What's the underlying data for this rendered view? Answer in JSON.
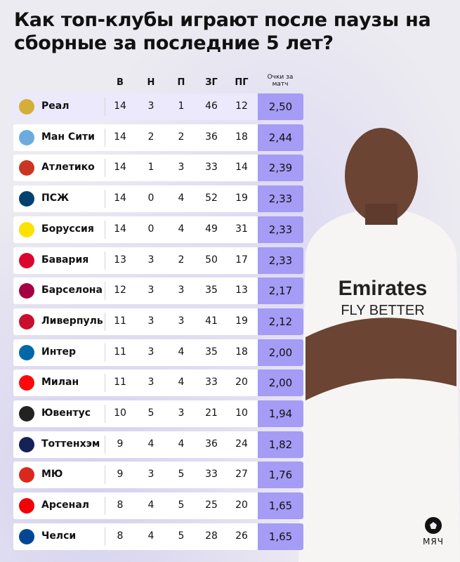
{
  "title": "Как топ-клубы играют после паузы на сборные за последние 5 лет?",
  "brand": "МЯЧ",
  "colors": {
    "score_cell": "#a49cf5",
    "highlight_row": "#ebe9fb"
  },
  "chart_data": {
    "type": "table",
    "columns": [
      "В",
      "Н",
      "П",
      "ЗГ",
      "ПГ",
      "Очки за матч"
    ],
    "rows": [
      {
        "team": "Реал",
        "logo": "real-madrid-crest",
        "v": 14,
        "n": 3,
        "p": 1,
        "zg": 46,
        "pg": 12,
        "ppm": "2,50",
        "color": "#d4af37"
      },
      {
        "team": "Ман Сити",
        "logo": "man-city-crest",
        "v": 14,
        "n": 2,
        "p": 2,
        "zg": 36,
        "pg": 18,
        "ppm": "2,44",
        "color": "#6cabdd"
      },
      {
        "team": "Атлетико",
        "logo": "atletico-crest",
        "v": 14,
        "n": 1,
        "p": 3,
        "zg": 33,
        "pg": 14,
        "ppm": "2,39",
        "color": "#cb3524"
      },
      {
        "team": "ПСЖ",
        "logo": "psg-crest",
        "v": 14,
        "n": 0,
        "p": 4,
        "zg": 52,
        "pg": 19,
        "ppm": "2,33",
        "color": "#004170"
      },
      {
        "team": "Боруссия",
        "logo": "borussia-crest",
        "v": 14,
        "n": 0,
        "p": 4,
        "zg": 49,
        "pg": 31,
        "ppm": "2,33",
        "color": "#fde100"
      },
      {
        "team": "Бавария",
        "logo": "bayern-crest",
        "v": 13,
        "n": 3,
        "p": 2,
        "zg": 50,
        "pg": 17,
        "ppm": "2,33",
        "color": "#dc052d"
      },
      {
        "team": "Барселона",
        "logo": "barcelona-crest",
        "v": 12,
        "n": 3,
        "p": 3,
        "zg": 35,
        "pg": 13,
        "ppm": "2,17",
        "color": "#a50044"
      },
      {
        "team": "Ливерпуль",
        "logo": "liverpool-crest",
        "v": 11,
        "n": 3,
        "p": 3,
        "zg": 41,
        "pg": 19,
        "ppm": "2,12",
        "color": "#c8102e"
      },
      {
        "team": "Интер",
        "logo": "inter-crest",
        "v": 11,
        "n": 3,
        "p": 4,
        "zg": 35,
        "pg": 18,
        "ppm": "2,00",
        "color": "#0068a8"
      },
      {
        "team": "Милан",
        "logo": "milan-crest",
        "v": 11,
        "n": 3,
        "p": 4,
        "zg": 33,
        "pg": 20,
        "ppm": "2,00",
        "color": "#fb090b"
      },
      {
        "team": "Ювентус",
        "logo": "juventus-crest",
        "v": 10,
        "n": 5,
        "p": 3,
        "zg": 21,
        "pg": 10,
        "ppm": "1,94",
        "color": "#222222"
      },
      {
        "team": "Тоттенхэм",
        "logo": "tottenham-crest",
        "v": 9,
        "n": 4,
        "p": 4,
        "zg": 36,
        "pg": 24,
        "ppm": "1,82",
        "color": "#132257"
      },
      {
        "team": "МЮ",
        "logo": "man-united-crest",
        "v": 9,
        "n": 3,
        "p": 5,
        "zg": 33,
        "pg": 27,
        "ppm": "1,76",
        "color": "#da291c"
      },
      {
        "team": "Арсенал",
        "logo": "arsenal-crest",
        "v": 8,
        "n": 4,
        "p": 5,
        "zg": 25,
        "pg": 20,
        "ppm": "1,65",
        "color": "#ef0107"
      },
      {
        "team": "Челси",
        "logo": "chelsea-crest",
        "v": 8,
        "n": 4,
        "p": 5,
        "zg": 28,
        "pg": 26,
        "ppm": "1,65",
        "color": "#034694"
      }
    ]
  }
}
